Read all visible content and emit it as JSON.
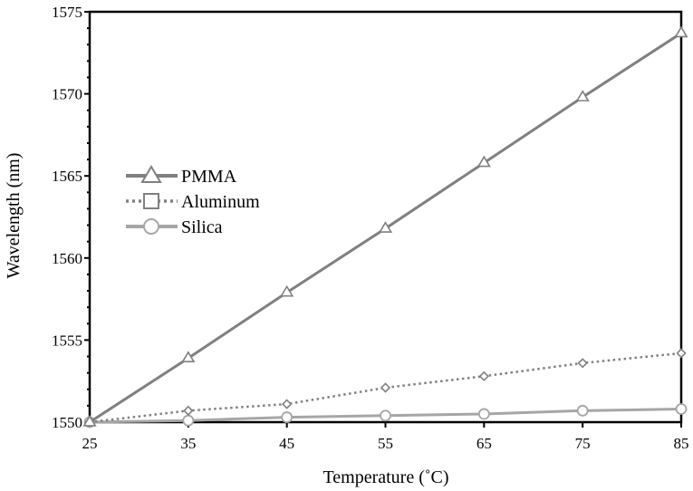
{
  "chart_data": {
    "type": "line",
    "title": "",
    "xlabel": "Temperature (˚C)",
    "ylabel": "Wavelength (nm)",
    "x": [
      25,
      35,
      45,
      55,
      65,
      75,
      85
    ],
    "xlim": [
      25,
      85
    ],
    "ylim": [
      1550,
      1575
    ],
    "xticks": [
      "25",
      "35",
      "45",
      "55",
      "65",
      "75",
      "85"
    ],
    "yticks": [
      "1550",
      "1555",
      "1560",
      "1565",
      "1570",
      "1575"
    ],
    "grid": false,
    "legend_position": "center-left",
    "series": [
      {
        "name": "PMMA",
        "marker": "triangle",
        "line": "solid",
        "color": "#808080",
        "values": [
          1550.0,
          1553.9,
          1557.9,
          1561.8,
          1565.8,
          1569.8,
          1573.7
        ]
      },
      {
        "name": "Aluminum",
        "marker": "square",
        "line": "dotted",
        "color": "#808080",
        "values": [
          1550.0,
          1550.7,
          1551.1,
          1552.1,
          1552.8,
          1553.6,
          1554.2
        ]
      },
      {
        "name": "Silica",
        "marker": "circle",
        "line": "solid",
        "color": "#a6a6a6",
        "values": [
          1550.0,
          1550.1,
          1550.3,
          1550.4,
          1550.5,
          1550.7,
          1550.8
        ]
      }
    ]
  }
}
